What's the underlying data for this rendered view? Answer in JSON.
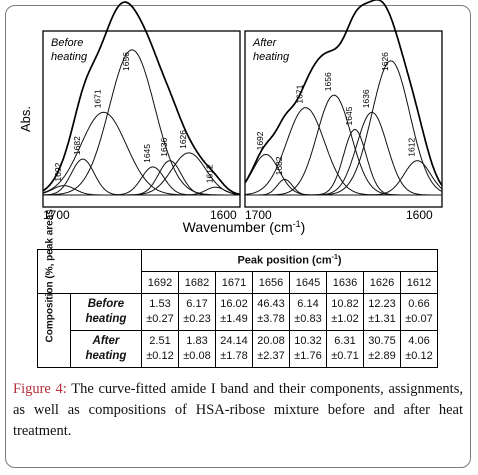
{
  "chart_data": [
    {
      "type": "line",
      "panel_title": "Before\nheating",
      "ylabel": "Abs.",
      "x_ticks": [
        "1700",
        "1600"
      ],
      "x_range": [
        1703,
        1599
      ],
      "components": [
        {
          "label": "1692",
          "center": 1692,
          "height": 0.06,
          "hwhm": 6
        },
        {
          "label": "1682",
          "center": 1682,
          "height": 0.23,
          "hwhm": 6
        },
        {
          "label": "1671",
          "center": 1671,
          "height": 0.53,
          "hwhm": 12
        },
        {
          "label": "1656",
          "center": 1656,
          "height": 0.93,
          "hwhm": 12
        },
        {
          "label": "1645",
          "center": 1645,
          "height": 0.18,
          "hwhm": 6
        },
        {
          "label": "1636",
          "center": 1636,
          "height": 0.22,
          "hwhm": 6
        },
        {
          "label": "1626",
          "center": 1626,
          "height": 0.27,
          "hwhm": 9
        },
        {
          "label": "1612",
          "center": 1612,
          "height": 0.05,
          "hwhm": 5
        }
      ]
    },
    {
      "type": "line",
      "panel_title": "After\nheating",
      "x_ticks": [
        "1700",
        "1600"
      ],
      "x_range": [
        1703,
        1599
      ],
      "components": [
        {
          "label": "1692",
          "center": 1692,
          "height": 0.26,
          "hwhm": 7
        },
        {
          "label": "1682",
          "center": 1682,
          "height": 0.1,
          "hwhm": 4
        },
        {
          "label": "1671",
          "center": 1671,
          "height": 0.56,
          "hwhm": 10
        },
        {
          "label": "1656",
          "center": 1656,
          "height": 0.64,
          "hwhm": 9
        },
        {
          "label": "1645",
          "center": 1645,
          "height": 0.42,
          "hwhm": 6
        },
        {
          "label": "1636",
          "center": 1636,
          "height": 0.53,
          "hwhm": 8
        },
        {
          "label": "1626",
          "center": 1626,
          "height": 0.86,
          "hwhm": 10
        },
        {
          "label": "1612",
          "center": 1612,
          "height": 0.22,
          "hwhm": 7
        }
      ]
    }
  ],
  "figure": {
    "xlabel": "Wavenumber (cm",
    "xlabel_sup": "-1",
    "xlabel_end": ")"
  },
  "table": {
    "peak_header": "Peak position (cm",
    "peak_header_sup": "-1",
    "peak_header_end": ")",
    "positions": [
      "1692",
      "1682",
      "1671",
      "1656",
      "1645",
      "1636",
      "1626",
      "1612"
    ],
    "composition_label": "Composition (%, peak areas",
    "rows": [
      {
        "condition": "Before heating",
        "values": [
          "1.53",
          "6.17",
          "16.02",
          "46.43",
          "6.14",
          "10.82",
          "12.23",
          "0.66"
        ],
        "errors": [
          "±0.27",
          "±0.23",
          "±1.49",
          "±3.78",
          "±0.83",
          "±1.02",
          "±1.31",
          "±0.07"
        ]
      },
      {
        "condition": "After heating",
        "values": [
          "2.51",
          "1.83",
          "24.14",
          "20.08",
          "10.32",
          "6.31",
          "30.75",
          "4.06"
        ],
        "errors": [
          "±0.12",
          "±0.08",
          "±1.78",
          "±2.37",
          "±1.76",
          "±0.71",
          "±2.89",
          "±0.12"
        ]
      }
    ]
  },
  "caption": {
    "label": "Figure 4:",
    "text": "The curve-fitted amide I band and their components, assignments, as well as compositions of HSA-ribose mixture before and after heat treatment."
  }
}
